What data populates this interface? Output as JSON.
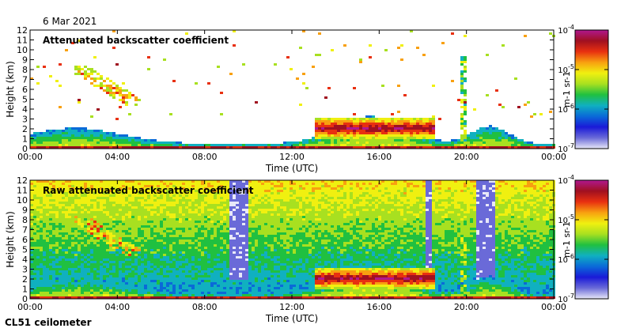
{
  "header": {
    "date": "6 Mar 2021"
  },
  "footer": {
    "instrument": "CL51 ceilometer"
  },
  "colormap": [
    "#e8e8f8",
    "#6a6ad8",
    "#1a1ad8",
    "#0a6ad8",
    "#10b0c0",
    "#20c040",
    "#a8e020",
    "#f0f010",
    "#f8a010",
    "#e83010",
    "#a01020",
    "#b01890"
  ],
  "chart_data": [
    {
      "type": "heatmap",
      "title": "Attenuated backscatter coefficient",
      "xlabel": "Time (UTC)",
      "ylabel": "Height (km)",
      "x_ticks": [
        "00:00",
        "04:00",
        "08:00",
        "12:00",
        "16:00",
        "20:00",
        "00:00"
      ],
      "x_range_hours": [
        0,
        24
      ],
      "y_ticks": [
        "0",
        "1",
        "2",
        "3",
        "4",
        "5",
        "6",
        "7",
        "8",
        "9",
        "10",
        "11",
        "12"
      ],
      "ylim": [
        0,
        12
      ],
      "colorbar": {
        "ticks": [
          "10^-4",
          "10^-5",
          "10^-6",
          "10^-7"
        ],
        "label": "m^-1 sr^-1",
        "log_range": [
          -7,
          -4
        ]
      }
    },
    {
      "type": "heatmap",
      "title": "Raw attenuated backscatter coefficient",
      "xlabel": "Time (UTC)",
      "ylabel": "Height (km)",
      "x_ticks": [
        "00:00",
        "04:00",
        "08:00",
        "12:00",
        "16:00",
        "20:00",
        "00:00"
      ],
      "x_range_hours": [
        0,
        24
      ],
      "y_ticks": [
        "0",
        "1",
        "2",
        "3",
        "4",
        "5",
        "6",
        "7",
        "8",
        "9",
        "10",
        "11",
        "12"
      ],
      "ylim": [
        0,
        12
      ],
      "colorbar": {
        "ticks": [
          "10^-4",
          "10^-5",
          "10^-6",
          "10^-7"
        ],
        "label": "m^-1 sr^-1",
        "log_range": [
          -7,
          -4
        ]
      }
    }
  ]
}
